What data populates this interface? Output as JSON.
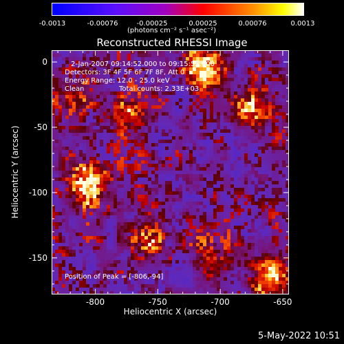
{
  "colorbar": {
    "tick_labels": [
      "-0.0013",
      "-0.00076",
      "-0.00025",
      "0.00025",
      "0.00076",
      "0.0013"
    ],
    "units": "(photons cm⁻² s⁻¹ asec⁻²)",
    "range": [
      -0.0013,
      0.0013
    ],
    "colors": [
      "#0000ff",
      "#6000ff",
      "#ff0000",
      "#ff8000",
      "#ffff00",
      "#ffffff"
    ]
  },
  "chart_data": {
    "type": "heatmap",
    "title": "Reconstructed RHESSI Image",
    "xlabel": "Heliocentric X (arcsec)",
    "ylabel": "Heliocentric Y (arcsec)",
    "xlim": [
      -835,
      -645
    ],
    "ylim": [
      -178,
      9
    ],
    "x_ticks": [
      -800,
      -750,
      -700,
      -650
    ],
    "x_tick_labels": [
      "-800",
      "-750",
      "-700",
      "-650"
    ],
    "y_ticks": [
      0,
      -50,
      -100,
      -150
    ],
    "y_tick_labels": [
      "0",
      "-50",
      "-100",
      "-150"
    ],
    "grid": false,
    "hot_spots": [
      {
        "x": -806,
        "y": -94,
        "intensity": 1.0
      },
      {
        "x": -712,
        "y": -5,
        "intensity": 0.85
      },
      {
        "x": -660,
        "y": -163,
        "intensity": 0.75
      },
      {
        "x": -672,
        "y": -37,
        "intensity": 0.6
      },
      {
        "x": -775,
        "y": -40,
        "intensity": 0.55
      },
      {
        "x": -760,
        "y": -135,
        "intensity": 0.5
      },
      {
        "x": -705,
        "y": -150,
        "intensity": 0.45
      },
      {
        "x": -820,
        "y": -25,
        "intensity": 0.4
      }
    ],
    "annotations": {
      "time": "2-Jan-2007 09:14:52.000 to 09:15:52.000",
      "detectors": "Detectors: 3F 4F 5F 6F 7F 8F, Att 0",
      "energy": "Energy Range: 12.0 - 25.0 keV",
      "clean": "Clean",
      "counts": "Total counts: 2.33E+03",
      "peak": "Position of Peak = [-806,-94]"
    }
  },
  "footer": {
    "date": "5-May-2022 10:51"
  }
}
